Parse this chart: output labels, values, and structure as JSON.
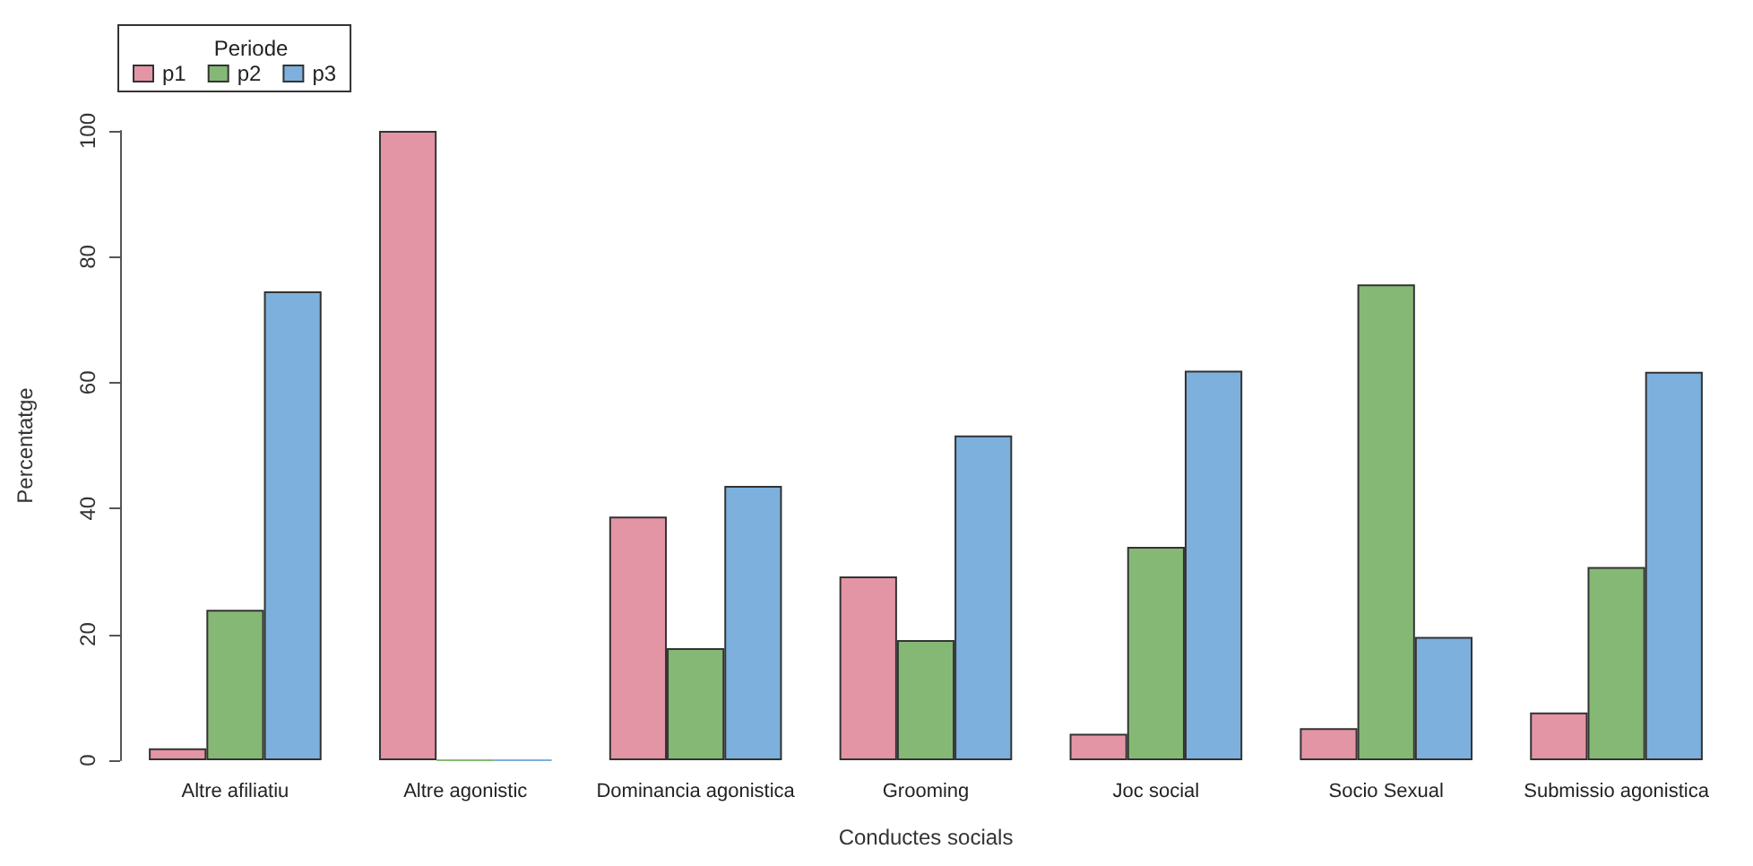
{
  "chart_data": {
    "type": "bar",
    "xlabel": "Conductes socials",
    "ylabel": "Percentatge",
    "legend_title": "Periode",
    "categories": [
      "Altre afiliatiu",
      "Altre agonistic",
      "Dominancia agonistica",
      "Grooming",
      "Joc social",
      "Socio Sexual",
      "Submissio agonistica"
    ],
    "series": [
      {
        "name": "p1",
        "color": "#e495a5",
        "values": [
          1.9,
          100,
          38.7,
          29.2,
          4.2,
          5.1,
          7.6
        ]
      },
      {
        "name": "p2",
        "color": "#86b875",
        "values": [
          23.9,
          0,
          17.8,
          19.1,
          33.9,
          75.6,
          30.7
        ]
      },
      {
        "name": "p3",
        "color": "#7db0dd",
        "values": [
          74.5,
          0,
          43.6,
          51.6,
          61.9,
          19.6,
          61.7
        ]
      }
    ],
    "ylim": [
      0,
      100
    ],
    "yticks": [
      0,
      20,
      40,
      60,
      80,
      100
    ],
    "grid": false,
    "legend": "top left"
  }
}
